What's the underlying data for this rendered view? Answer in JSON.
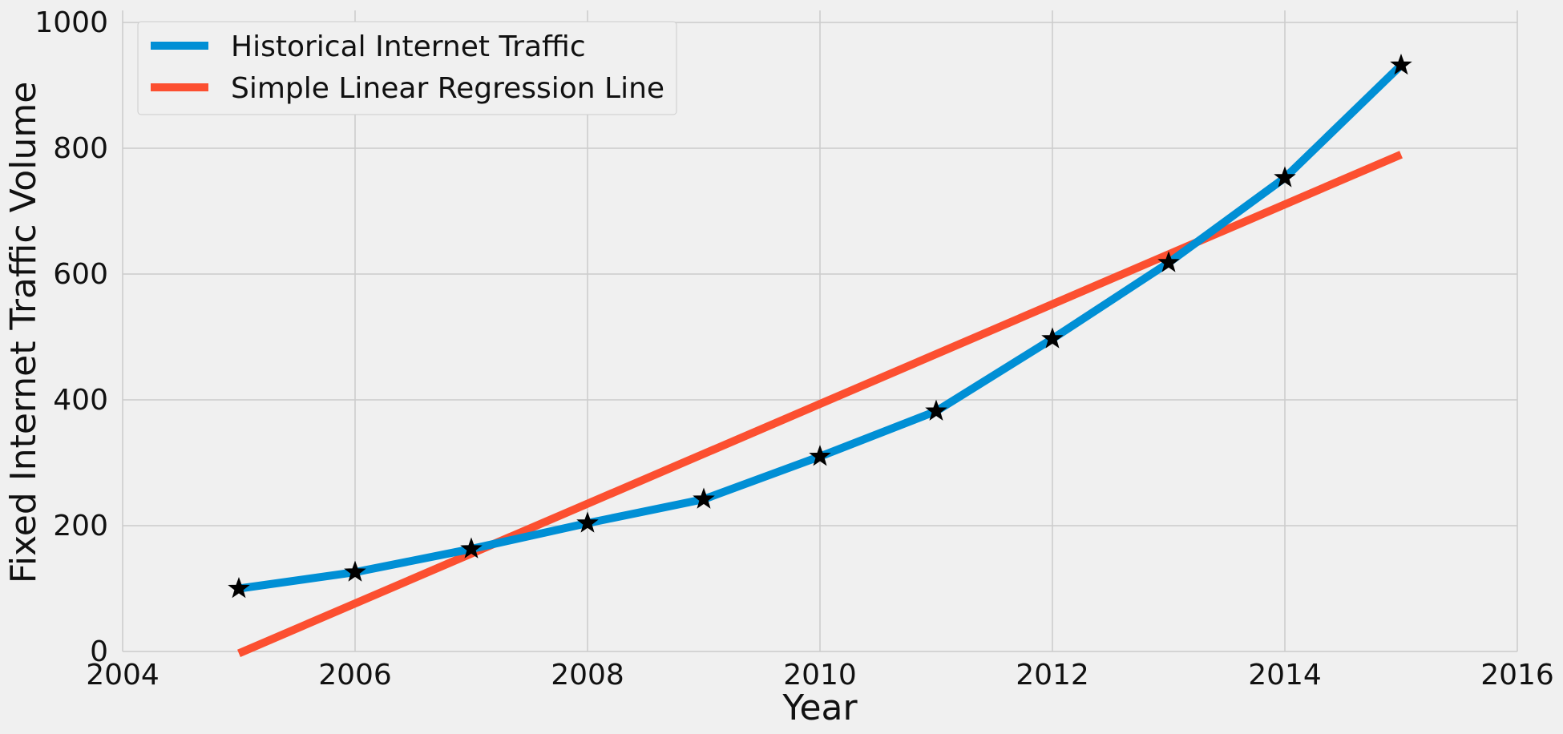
{
  "chart_data": {
    "type": "line",
    "title": "",
    "xlabel": "Year",
    "ylabel": "Fixed Internet Traffic Volume",
    "xlim": [
      2004,
      2016
    ],
    "ylim": [
      0,
      1000
    ],
    "xticks": [
      "2004",
      "2006",
      "2008",
      "2010",
      "2012",
      "2014",
      "2016"
    ],
    "yticks": [
      "0",
      "200",
      "400",
      "600",
      "800",
      "1000"
    ],
    "grid": true,
    "legend_position": "top-left",
    "series": [
      {
        "name": "Historical Internet Traffic",
        "color": "#008fd5",
        "marker": "black star",
        "x": [
          2005,
          2006,
          2007,
          2008,
          2009,
          2010,
          2011,
          2012,
          2013,
          2014,
          2015
        ],
        "y": [
          100,
          126,
          163,
          204,
          242,
          310,
          382,
          497,
          618,
          753,
          932
        ]
      },
      {
        "name": "Simple Linear Regression Line",
        "color": "#fc4f30",
        "x": [
          2005,
          2015
        ],
        "y": [
          -3,
          790
        ]
      }
    ]
  }
}
